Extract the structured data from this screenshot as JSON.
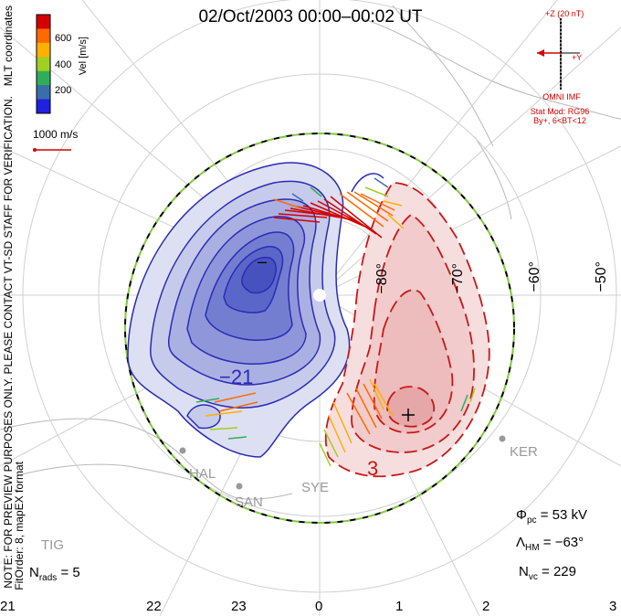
{
  "title": "02/Oct/2003 00:00–00:02 UT",
  "colorbar": {
    "label": "Vel [m/s]",
    "ticks": [
      "600",
      "400",
      "200"
    ],
    "colors": [
      "#d40000",
      "#ff6a00",
      "#ffb000",
      "#a0d020",
      "#2fae5a",
      "#3a6ea8",
      "#2020e0"
    ]
  },
  "side_labels": {
    "coords": "MLT coordinates",
    "note": "NOTE: FOR PREVIEW PURPOSES ONLY. PLEASE CONTACT VT-SD STAFF FOR VERIFICATION.",
    "fit": "FitOrder: 8, mapEX format"
  },
  "velocity_scale": "1000 m/s",
  "imf": {
    "z_label": "+Z (20 nT)",
    "y_label": "+Y",
    "name": "OMNI IMF",
    "stat_mod": "Stat Mod: RG96",
    "condition": "By+, 6<BT<12"
  },
  "latitude_labels": [
    "−70°",
    "−60°",
    "−50°",
    "−80°"
  ],
  "contour_labels": {
    "neg": "−21",
    "pos": "3",
    "cross_neg": "–"
  },
  "mlt_labels": [
    "21",
    "22",
    "23",
    "0",
    "1",
    "2",
    "3"
  ],
  "stations": [
    "HAL",
    "SAN",
    "SYE",
    "KER",
    "TIG"
  ],
  "stats": {
    "phi": {
      "symbol": "Φ",
      "sub": "pc",
      "value": "= 53 kV"
    },
    "lambda": {
      "symbol": "Λ",
      "sub": "HM",
      "value": "= −63°"
    },
    "nvc": {
      "symbol": "N",
      "sub": "vc",
      "value": "= 229"
    },
    "nrads": {
      "symbol": "N",
      "sub": "rads",
      "value": "= 5"
    }
  }
}
